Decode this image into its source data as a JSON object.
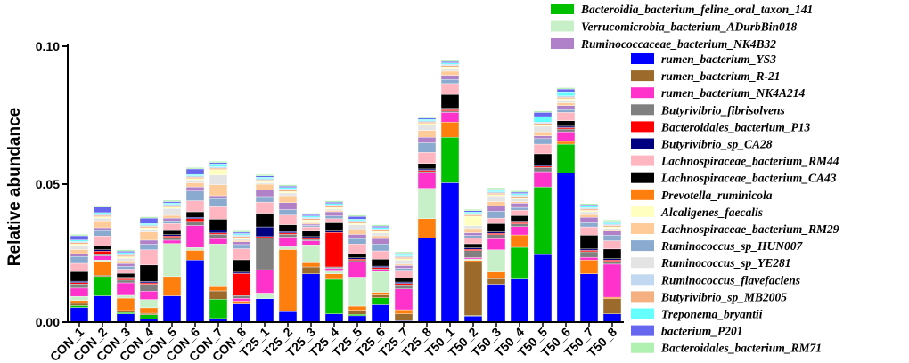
{
  "chart_data": {
    "type": "bar",
    "stacked": true,
    "title": "",
    "xlabel": "",
    "ylabel": "Relative abundance",
    "ylim": [
      0,
      0.1
    ],
    "yticks": [
      "0.00",
      "0.05",
      "0.10"
    ],
    "grid": false,
    "legend_position": "right",
    "categories": [
      "CON_1",
      "CON_2",
      "CON_3",
      "CON_4",
      "CON_5",
      "CON_6",
      "CON_7",
      "CON_8",
      "T25_1",
      "T25_2",
      "T25_3",
      "T25_4",
      "T25_5",
      "T25_6",
      "T25_7",
      "T25_8",
      "T50_1",
      "T50_2",
      "T50_3",
      "T50_4",
      "T50_5",
      "T50_6",
      "T50_7",
      "T50_8"
    ],
    "series": [
      {
        "name": "rumen_bacterium_YS3",
        "color": "#0000ff",
        "values": [
          0.0053,
          0.0095,
          0.003,
          0.0012,
          0.0095,
          0.0225,
          0.0013,
          0.0066,
          0.0085,
          0.0038,
          0.0175,
          0.003,
          0.0023,
          0.0063,
          0.0005,
          0.0305,
          0.0505,
          0.0022,
          0.0137,
          0.0156,
          0.0245,
          0.054,
          0.0175,
          0.003
        ]
      },
      {
        "name": "Bacteroidia_bacterium_feline_oral_taxon_141",
        "color": "#00c000",
        "values": [
          0.0007,
          0.007,
          0.0005,
          0.0015,
          0.0,
          0.0,
          0.007,
          0.0,
          0.0,
          0.0,
          0.0,
          0.0125,
          0.0005,
          0.0025,
          0.0,
          0.0,
          0.0165,
          0.0002,
          0.0,
          0.0115,
          0.0245,
          0.0105,
          0.0,
          0.0
        ]
      },
      {
        "name": "rumen_bacterium_R-21",
        "color": "#9c6a2a",
        "values": [
          0.0008,
          0.0005,
          0.0007,
          0.0005,
          0.0,
          0.0,
          0.003,
          0.0,
          0.0,
          0.0,
          0.0025,
          0.0,
          0.0015,
          0.001,
          0.0025,
          0.0,
          0.0,
          0.0195,
          0.002,
          0.0,
          0.0,
          0.0,
          0.0,
          0.0055
        ]
      },
      {
        "name": "Prevotella_ruminicola",
        "color": "#ff7f0e",
        "values": [
          0.001,
          0.005,
          0.0045,
          0.002,
          0.007,
          0.0035,
          0.0015,
          0.001,
          0.0,
          0.0225,
          0.0015,
          0.002,
          0.0015,
          0.001,
          0.0015,
          0.007,
          0.0055,
          0.0005,
          0.0025,
          0.0045,
          0.0,
          0.001,
          0.005,
          0.0005
        ]
      },
      {
        "name": "Verrucomicrobia_bacterium_ADurbBin018",
        "color": "#c8f0c8",
        "values": [
          0.0015,
          0.0005,
          0.001,
          0.003,
          0.012,
          0.001,
          0.0155,
          0.0,
          0.002,
          0.001,
          0.0065,
          0.001,
          0.0105,
          0.0075,
          0.0,
          0.011,
          0.0,
          0.0005,
          0.008,
          0.0,
          0.0,
          0.0,
          0.0,
          0.0
        ]
      },
      {
        "name": "rumen_bacterium_NK4A214",
        "color": "#ff33cc",
        "values": [
          0.003,
          0.0015,
          0.0045,
          0.003,
          0.0012,
          0.008,
          0.002,
          0.001,
          0.0085,
          0.0035,
          0.0015,
          0.001,
          0.0055,
          0.0005,
          0.0075,
          0.0055,
          0.0035,
          0.0005,
          0.004,
          0.003,
          0.0055,
          0.0035,
          0.001,
          0.012
        ]
      },
      {
        "name": "Butyrivibrio_fibrisolvens",
        "color": "#808080",
        "values": [
          0.0015,
          0.0005,
          0.001,
          0.0025,
          0.001,
          0.0015,
          0.0015,
          0.001,
          0.0115,
          0.001,
          0.0005,
          0.0005,
          0.0005,
          0.0005,
          0.0015,
          0.0005,
          0.0005,
          0.0025,
          0.0015,
          0.001,
          0.0015,
          0.001,
          0.002,
          0.001
        ]
      },
      {
        "name": "Bacteroidales_bacterium_P13",
        "color": "#ff0000",
        "values": [
          0.0005,
          0.0012,
          0.0005,
          0.0005,
          0.0005,
          0.001,
          0.0005,
          0.008,
          0.0005,
          0.0005,
          0.0005,
          0.0125,
          0.0005,
          0.0005,
          0.0005,
          0.0005,
          0.0005,
          0.0005,
          0.0005,
          0.0005,
          0.0005,
          0.0005,
          0.0005,
          0.0005
        ]
      },
      {
        "name": "Butyrivibrio_sp_CA28",
        "color": "#000080",
        "values": [
          0.0005,
          0.0005,
          0.0005,
          0.0005,
          0.0005,
          0.0005,
          0.001,
          0.0005,
          0.0035,
          0.0005,
          0.0005,
          0.0005,
          0.0005,
          0.0005,
          0.0005,
          0.0005,
          0.0005,
          0.0005,
          0.0005,
          0.0005,
          0.0005,
          0.0005,
          0.0005,
          0.0005
        ]
      },
      {
        "name": "Lachnospiraceae_bacterium_CA43",
        "color": "#000000",
        "values": [
          0.0035,
          0.0015,
          0.0015,
          0.006,
          0.0015,
          0.002,
          0.004,
          0.0045,
          0.005,
          0.0025,
          0.002,
          0.003,
          0.0015,
          0.0025,
          0.0015,
          0.002,
          0.005,
          0.0015,
          0.003,
          0.002,
          0.004,
          0.002,
          0.005,
          0.0035
        ]
      },
      {
        "name": "Lachnospiraceae_bacterium_RM44",
        "color": "#ffb6c1",
        "values": [
          0.003,
          0.0035,
          0.0015,
          0.0055,
          0.0025,
          0.004,
          0.0045,
          0.004,
          0.004,
          0.0035,
          0.0015,
          0.0015,
          0.0035,
          0.003,
          0.0025,
          0.004,
          0.004,
          0.002,
          0.002,
          0.002,
          0.0035,
          0.003,
          0.003,
          0.003
        ]
      },
      {
        "name": "Ruminococcus_sp_HUN007",
        "color": "#8aaad0",
        "values": [
          0.0025,
          0.002,
          0.001,
          0.002,
          0.001,
          0.0035,
          0.003,
          0.0015,
          0.002,
          0.002,
          0.0005,
          0.001,
          0.002,
          0.0025,
          0.001,
          0.0035,
          0.0015,
          0.001,
          0.0025,
          0.001,
          0.002,
          0.001,
          0.0015,
          0.002
        ]
      },
      {
        "name": "Ruminococcaceae_bacterium_NK4B32",
        "color": "#b080c8",
        "values": [
          0.001,
          0.001,
          0.001,
          0.0015,
          0.001,
          0.0015,
          0.001,
          0.001,
          0.0025,
          0.0025,
          0.0005,
          0.0015,
          0.0015,
          0.002,
          0.001,
          0.002,
          0.0015,
          0.001,
          0.002,
          0.0015,
          0.001,
          0.0015,
          0.002,
          0.0015
        ]
      },
      {
        "name": "Lachnospiraceae_bacterium_RM29",
        "color": "#ffcc99",
        "values": [
          0.0015,
          0.0025,
          0.001,
          0.003,
          0.001,
          0.0015,
          0.004,
          0.0005,
          0.002,
          0.0025,
          0.0005,
          0.0005,
          0.0015,
          0.001,
          0.0005,
          0.0025,
          0.0015,
          0.0015,
          0.0015,
          0.0005,
          0.0015,
          0.001,
          0.001,
          0.0005
        ]
      },
      {
        "name": "Ruminococcus_sp_YE281",
        "color": "#e4e4e4",
        "values": [
          0.0015,
          0.001,
          0.001,
          0.001,
          0.0025,
          0.001,
          0.0035,
          0.0005,
          0.0005,
          0.001,
          0.0005,
          0.0005,
          0.002,
          0.001,
          0.0015,
          0.002,
          0.001,
          0.001,
          0.002,
          0.001,
          0.002,
          0.001,
          0.001,
          0.0005
        ]
      },
      {
        "name": "Alcaligenes_faecalis",
        "color": "#ffffc0",
        "values": [
          0.0005,
          0.0005,
          0.0005,
          0.0005,
          0.0005,
          0.0005,
          0.002,
          0.0005,
          0.0005,
          0.0005,
          0.0005,
          0.0005,
          0.0005,
          0.0005,
          0.0005,
          0.0005,
          0.0005,
          0.0035,
          0.0005,
          0.0005,
          0.0005,
          0.0005,
          0.0005,
          0.0005
        ]
      },
      {
        "name": "Butyrivibrio_sp_MB2005",
        "color": "#f4b080",
        "values": [
          0.0005,
          0.0005,
          0.0005,
          0.0005,
          0.0005,
          0.0005,
          0.0005,
          0.0005,
          0.0005,
          0.0005,
          0.0005,
          0.0005,
          0.0005,
          0.0005,
          0.0005,
          0.0005,
          0.0005,
          0.0005,
          0.0005,
          0.0005,
          0.0005,
          0.0005,
          0.0005,
          0.0005
        ]
      },
      {
        "name": "Ruminococcus_flavefaciens",
        "color": "#c0d8f0",
        "values": [
          0.0005,
          0.0005,
          0.0005,
          0.0005,
          0.0005,
          0.0005,
          0.0005,
          0.0005,
          0.0005,
          0.0005,
          0.0005,
          0.0005,
          0.0005,
          0.0005,
          0.0005,
          0.0005,
          0.0005,
          0.0005,
          0.0005,
          0.0005,
          0.0005,
          0.0005,
          0.0005,
          0.0005
        ]
      },
      {
        "name": "Treponema_bryantii",
        "color": "#66ffff",
        "values": [
          0.0005,
          0.0005,
          0.0005,
          0.0005,
          0.0005,
          0.0005,
          0.001,
          0.0005,
          0.0005,
          0.0005,
          0.0005,
          0.0005,
          0.0005,
          0.0005,
          0.0005,
          0.0005,
          0.0005,
          0.0005,
          0.0005,
          0.0005,
          0.002,
          0.0015,
          0.0005,
          0.0005
        ]
      },
      {
        "name": "bacterium_P201",
        "color": "#6666ee",
        "values": [
          0.0015,
          0.002,
          0.0005,
          0.002,
          0.0005,
          0.002,
          0.0005,
          0.0005,
          0.0005,
          0.0005,
          0.0005,
          0.0005,
          0.001,
          0.0005,
          0.0005,
          0.0005,
          0.0005,
          0.0005,
          0.0005,
          0.0005,
          0.0015,
          0.001,
          0.0005,
          0.0005
        ]
      },
      {
        "name": "Bacteroidales_bacterium_RM71",
        "color": "#b0f0b0",
        "values": [
          0.0005,
          0.0005,
          0.0005,
          0.0005,
          0.0005,
          0.0005,
          0.0005,
          0.0005,
          0.0005,
          0.0005,
          0.0005,
          0.0005,
          0.0005,
          0.0005,
          0.0005,
          0.0005,
          0.0005,
          0.0005,
          0.0005,
          0.0005,
          0.0005,
          0.0005,
          0.0005,
          0.0005
        ]
      }
    ],
    "legend": [
      "Bacteroidia_bacterium_feline_oral_taxon_141",
      "Verrucomicrobia_bacterium_ADurbBin018",
      "Ruminococcaceae_bacterium_NK4B32",
      "rumen_bacterium_YS3",
      "rumen_bacterium_R-21",
      "rumen_bacterium_NK4A214",
      "Butyrivibrio_fibrisolvens",
      "Bacteroidales_bacterium_P13",
      "Butyrivibrio_sp_CA28",
      "Lachnospiraceae_bacterium_RM44",
      "Lachnospiraceae_bacterium_CA43",
      "Prevotella_ruminicola",
      "Alcaligenes_faecalis",
      "Lachnospiraceae_bacterium_RM29",
      "Ruminococcus_sp_HUN007",
      "Ruminococcus_sp_YE281",
      "Ruminococcus_flavefaciens",
      "Butyrivibrio_sp_MB2005",
      "Treponema_bryantii",
      "bacterium_P201",
      "Bacteroidales_bacterium_RM71"
    ]
  }
}
